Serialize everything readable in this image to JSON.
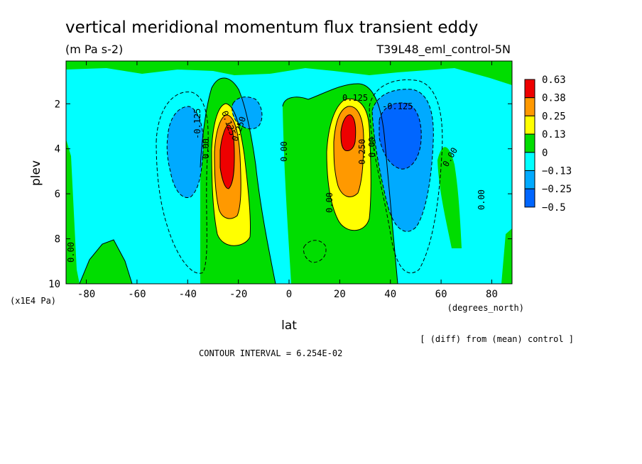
{
  "header": {
    "title": "vertical meridional momentum flux transient eddy",
    "units": "(m Pa s-2)",
    "run_id": "T39L48_eml_control-5N"
  },
  "footer": {
    "note": "[ (diff) from (mean) control ]",
    "contour_interval": "CONTOUR INTERVAL = 6.254E-02"
  },
  "chart_data": {
    "type": "contour",
    "xlabel": "lat",
    "ylabel": "plev",
    "x_units": "(degrees_north)",
    "y_units": "(x1E4 Pa)",
    "xlim": [
      -88,
      88
    ],
    "ylim": [
      0.1,
      10
    ],
    "y_inverted": true,
    "x_ticks": [
      -80,
      -60,
      -40,
      -20,
      0,
      20,
      40,
      60,
      80
    ],
    "y_ticks": [
      2,
      4,
      6,
      8,
      10
    ],
    "colorbar": {
      "labels": [
        "0.63",
        "0.38",
        "0.25",
        "0.13",
        "0",
        "−0.13",
        "−0.25",
        "−0.5"
      ],
      "colors": [
        "#ee0000",
        "#ff9900",
        "#ffff00",
        "#00dd00",
        "#00ffff",
        "#00aaff",
        "#0066ff"
      ]
    },
    "background_color": "#00ffff",
    "features": [
      {
        "name": "SH positive jet core",
        "lat_center": -25,
        "plev_center": 4.2,
        "max_level": "0.38-0.63"
      },
      {
        "name": "NH positive jet core",
        "lat_center": 23,
        "plev_center": 3.3,
        "max_level": "0.38-0.63"
      },
      {
        "name": "SH negative flank",
        "lat_center": -40,
        "plev_center": 3.8,
        "min_level": "-0.25 to -0.13"
      },
      {
        "name": "NH negative flank",
        "lat_center": 45,
        "plev_center": 4.0,
        "min_level": "-0.5 to -0.25"
      }
    ],
    "contour_labels": [
      "0.00",
      "-0.125",
      "0.125",
      "0.250",
      "0.00",
      "0.00",
      "0.125",
      "0.250",
      "0.00",
      "-0.125",
      "0.00",
      "0.00",
      "0.00"
    ]
  }
}
